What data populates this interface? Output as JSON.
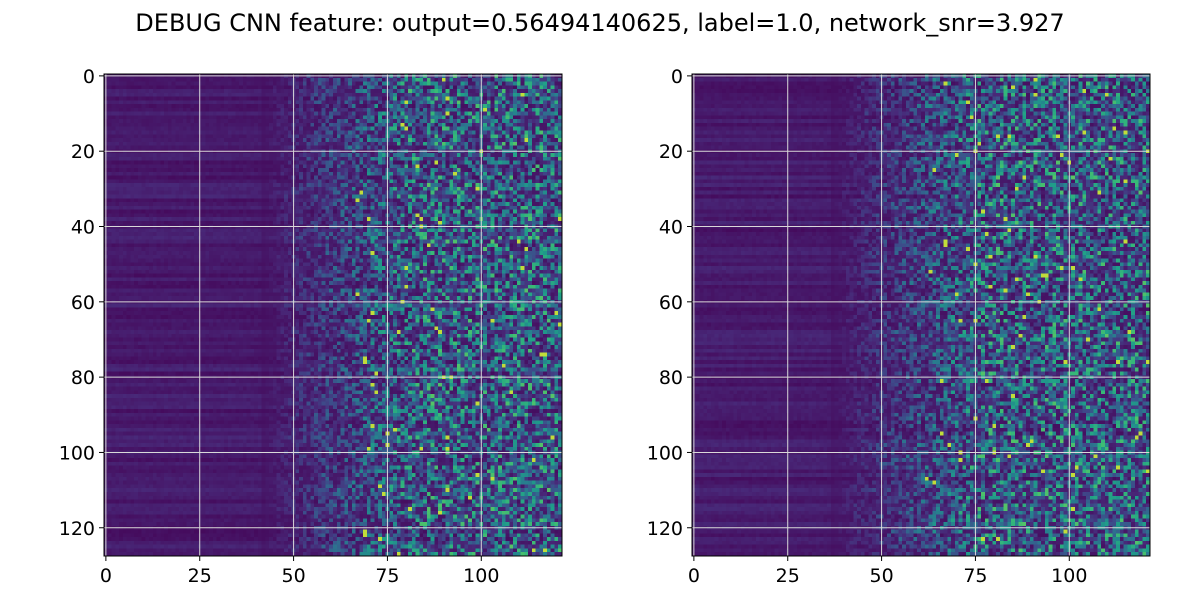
{
  "figure": {
    "title": "DEBUG CNN feature: output=0.56494140625, label=1.0, network_snr=3.927"
  },
  "chart_data": [
    {
      "type": "heatmap",
      "title": "",
      "xlabel": "",
      "ylabel": "",
      "rows": 128,
      "cols": 122,
      "xlim": [
        -0.5,
        121.5
      ],
      "ylim": [
        127.5,
        -0.5
      ],
      "x_ticks": [
        0,
        25,
        50,
        75,
        100
      ],
      "y_ticks": [
        0,
        20,
        40,
        60,
        80,
        100,
        120
      ],
      "x_tick_labels": [
        "0",
        "25",
        "50",
        "75",
        "100"
      ],
      "y_tick_labels": [
        "0",
        "20",
        "40",
        "60",
        "80",
        "100",
        "120"
      ],
      "colormap": "viridis",
      "grid": true,
      "description_of_values": "low uniform intensity for columns 0-50, increasing noisy intensity toward columns 75-121"
    },
    {
      "type": "heatmap",
      "title": "",
      "xlabel": "",
      "ylabel": "",
      "rows": 128,
      "cols": 122,
      "xlim": [
        -0.5,
        121.5
      ],
      "ylim": [
        127.5,
        -0.5
      ],
      "x_ticks": [
        0,
        25,
        50,
        75,
        100
      ],
      "y_ticks": [
        0,
        20,
        40,
        60,
        80,
        100,
        120
      ],
      "x_tick_labels": [
        "0",
        "25",
        "50",
        "75",
        "100"
      ],
      "y_tick_labels": [
        "0",
        "20",
        "40",
        "60",
        "80",
        "100",
        "120"
      ],
      "colormap": "viridis",
      "grid": true,
      "description_of_values": "low uniform intensity for columns 0-45, increasing noisy intensity toward columns 70-121"
    }
  ],
  "colors": {
    "viridis_low": "#440154",
    "viridis_mid": "#21918c",
    "viridis_high": "#fde725",
    "grid": "#d9d9d9"
  }
}
